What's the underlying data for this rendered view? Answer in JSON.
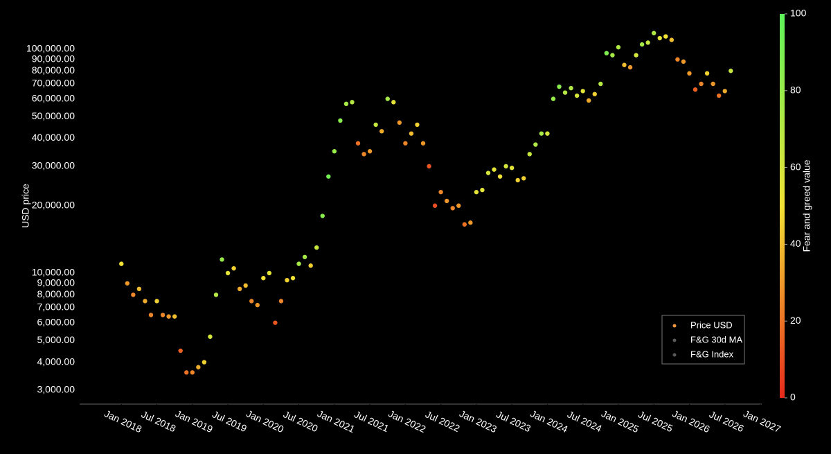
{
  "chart_data": {
    "type": "scatter",
    "y_label": "USD price",
    "colorbar_label": "Fear and greed value",
    "log_y": true,
    "grid": false,
    "legend": "lower right",
    "x": [
      "2018-01",
      "2018-02",
      "2018-03",
      "2018-04",
      "2018-05",
      "2018-06",
      "2018-07",
      "2018-08",
      "2018-09",
      "2018-10",
      "2018-11",
      "2018-12",
      "2019-01",
      "2019-02",
      "2019-03",
      "2019-04",
      "2019-05",
      "2019-06",
      "2019-07",
      "2019-08",
      "2019-09",
      "2019-10",
      "2019-11",
      "2019-12",
      "2020-01",
      "2020-02",
      "2020-03",
      "2020-04",
      "2020-05",
      "2020-06",
      "2020-07",
      "2020-08",
      "2020-09",
      "2020-10",
      "2020-11",
      "2020-12",
      "2021-01",
      "2021-02",
      "2021-03",
      "2021-04",
      "2021-05",
      "2021-06",
      "2021-07",
      "2021-08",
      "2021-09",
      "2021-10",
      "2021-11",
      "2021-12",
      "2022-01",
      "2022-02",
      "2022-03",
      "2022-04",
      "2022-05",
      "2022-06",
      "2022-07",
      "2022-08",
      "2022-09",
      "2022-10",
      "2022-11",
      "2022-12",
      "2023-01",
      "2023-02",
      "2023-03",
      "2023-04",
      "2023-05",
      "2023-06",
      "2023-07",
      "2023-08",
      "2023-09",
      "2023-10",
      "2023-11",
      "2023-12",
      "2024-01",
      "2024-02",
      "2024-03",
      "2024-04",
      "2024-05",
      "2024-06",
      "2024-07",
      "2024-08",
      "2024-09",
      "2024-10",
      "2024-11",
      "2024-12",
      "2025-01",
      "2025-02",
      "2025-03",
      "2025-04",
      "2025-05",
      "2025-06",
      "2025-07",
      "2025-08",
      "2025-09",
      "2025-10",
      "2025-11",
      "2025-12",
      "2026-01",
      "2026-02",
      "2026-03",
      "2026-04",
      "2026-05",
      "2026-06",
      "2026-07",
      "2026-08"
    ],
    "series": [
      {
        "name": "Price USD",
        "color": "#f0963c",
        "values": [
          11000,
          9000,
          8000,
          8500,
          7500,
          6500,
          7500,
          6500,
          6400,
          6400,
          4500,
          3600,
          3600,
          3800,
          4000,
          5200,
          8000,
          11500,
          10000,
          10500,
          8500,
          8800,
          7500,
          7200,
          9500,
          10000,
          6000,
          7500,
          9300,
          9500,
          11000,
          11800,
          10800,
          13000,
          18000,
          27000,
          35000,
          48000,
          57000,
          58000,
          38000,
          34000,
          35000,
          46000,
          43000,
          60000,
          58000,
          47000,
          38000,
          42000,
          46000,
          38000,
          30000,
          20000,
          23000,
          21000,
          19500,
          20000,
          16500,
          16800,
          23000,
          23500,
          28000,
          29000,
          27000,
          30000,
          29500,
          26000,
          26500,
          34000,
          37500,
          42000,
          42000,
          60000,
          68000,
          64000,
          67000,
          62000,
          65000,
          59000,
          63000,
          70000,
          96000,
          94000,
          102000,
          85000,
          83000,
          94000,
          105000,
          107000,
          118000,
          112000,
          114000,
          110000,
          90000,
          88000,
          78000,
          66000,
          70000,
          78000,
          70000,
          62000,
          65000,
          80000
        ],
        "fng": [
          50,
          30,
          25,
          40,
          35,
          25,
          45,
          25,
          30,
          40,
          15,
          20,
          25,
          35,
          45,
          60,
          70,
          80,
          55,
          45,
          35,
          40,
          25,
          30,
          50,
          55,
          12,
          25,
          45,
          50,
          75,
          75,
          45,
          65,
          85,
          92,
          80,
          85,
          75,
          70,
          20,
          25,
          30,
          65,
          35,
          75,
          55,
          30,
          25,
          40,
          45,
          30,
          12,
          10,
          25,
          30,
          25,
          30,
          20,
          30,
          55,
          55,
          60,
          55,
          50,
          60,
          55,
          45,
          45,
          65,
          72,
          75,
          60,
          80,
          85,
          70,
          72,
          60,
          55,
          35,
          45,
          70,
          88,
          75,
          72,
          40,
          30,
          60,
          75,
          65,
          72,
          55,
          50,
          40,
          25,
          30,
          30,
          15,
          25,
          45,
          30,
          20,
          35,
          65
        ]
      },
      {
        "name": "F&G 30d MA",
        "color": "#5a5a5a"
      },
      {
        "name": "F&G Index",
        "color": "#5a5a5a"
      }
    ],
    "xlim": [
      "2017-07",
      "2027-01"
    ],
    "xticks": [
      {
        "value": "2018-01",
        "label": "Jan 2018"
      },
      {
        "value": "2018-07",
        "label": "Jul 2018"
      },
      {
        "value": "2019-01",
        "label": "Jan 2019"
      },
      {
        "value": "2019-07",
        "label": "Jul 2019"
      },
      {
        "value": "2020-01",
        "label": "Jan 2020"
      },
      {
        "value": "2020-07",
        "label": "Jul 2020"
      },
      {
        "value": "2021-01",
        "label": "Jan 2021"
      },
      {
        "value": "2021-07",
        "label": "Jul 2021"
      },
      {
        "value": "2022-01",
        "label": "Jan 2022"
      },
      {
        "value": "2022-07",
        "label": "Jul 2022"
      },
      {
        "value": "2023-01",
        "label": "Jan 2023"
      },
      {
        "value": "2023-07",
        "label": "Jul 2023"
      },
      {
        "value": "2024-01",
        "label": "Jan 2024"
      },
      {
        "value": "2024-07",
        "label": "Jul 2024"
      },
      {
        "value": "2025-01",
        "label": "Jan 2025"
      },
      {
        "value": "2025-07",
        "label": "Jul 2025"
      },
      {
        "value": "2026-01",
        "label": "Jan 2026"
      },
      {
        "value": "2026-07",
        "label": "Jul 2026"
      },
      {
        "value": "2027-01",
        "label": "Jan 2027"
      }
    ],
    "ylim": [
      2600,
      149000
    ],
    "yticks": [
      {
        "value": 3000,
        "label": "3,000.00"
      },
      {
        "value": 4000,
        "label": "4,000.00"
      },
      {
        "value": 5000,
        "label": "5,000.00"
      },
      {
        "value": 6000,
        "label": "6,000.00"
      },
      {
        "value": 7000,
        "label": "7,000.00"
      },
      {
        "value": 8000,
        "label": "8,000.00"
      },
      {
        "value": 9000,
        "label": "9,000.00"
      },
      {
        "value": 10000,
        "label": "10,000.00"
      },
      {
        "value": 20000,
        "label": "20,000.00"
      },
      {
        "value": 30000,
        "label": "30,000.00"
      },
      {
        "value": 40000,
        "label": "40,000.00"
      },
      {
        "value": 50000,
        "label": "50,000.00"
      },
      {
        "value": 60000,
        "label": "60,000.00"
      },
      {
        "value": 70000,
        "label": "70,000.00"
      },
      {
        "value": 80000,
        "label": "80,000.00"
      },
      {
        "value": 90000,
        "label": "90,000.00"
      },
      {
        "value": 100000,
        "label": "100,000.00"
      }
    ],
    "clim": [
      0,
      100
    ],
    "cticks": [
      0,
      20,
      40,
      60,
      80,
      100
    ],
    "colorscale": [
      "#e8291c",
      "#f2e233",
      "#5cf25a"
    ]
  }
}
